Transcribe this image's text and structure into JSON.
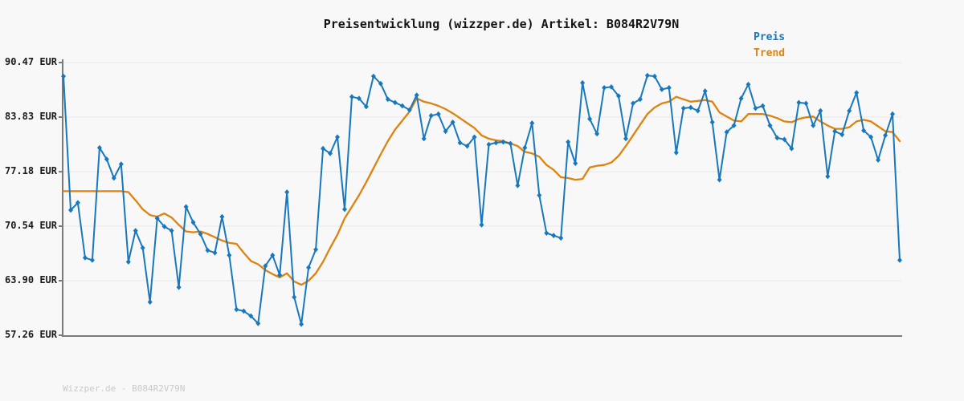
{
  "page": {
    "background": "#f8f8f8",
    "footer": "Wizzper.de - B084R2V79N"
  },
  "chart_data": {
    "type": "line",
    "title": "Preisentwicklung (wizzper.de) Artikel: B084R2V79N",
    "currency": "EUR",
    "xlabel": "",
    "ylabel": "",
    "ylim": [
      57.26,
      90.47
    ],
    "yticks": [
      90.47,
      83.83,
      77.18,
      70.54,
      63.9,
      57.26
    ],
    "ytick_labels": [
      "90.47 EUR",
      "83.83 EUR",
      "77.18 EUR",
      "70.54 EUR",
      "63.90 EUR",
      "57.26 EUR"
    ],
    "grid": "horizontal",
    "legend_position": "top-right",
    "colors": {
      "preis": "#1878be",
      "trend": "#dd830e",
      "axis": "#7a7a7a",
      "gridline": "#e8e8e8"
    },
    "legend": [
      {
        "label": "Preis",
        "color": "#1878be"
      },
      {
        "label": "Trend",
        "color": "#dd830e"
      }
    ],
    "series": [
      {
        "name": "Preis",
        "color": "#1878be",
        "marker": "diamond",
        "values": [
          88.8,
          72.5,
          73.4,
          66.7,
          66.4,
          80.1,
          78.7,
          76.4,
          78.1,
          66.2,
          70.0,
          67.9,
          61.3,
          71.5,
          70.5,
          70.0,
          63.1,
          72.9,
          71.0,
          69.6,
          67.6,
          67.3,
          71.7,
          67.0,
          60.4,
          60.2,
          59.6,
          58.7,
          65.7,
          67.0,
          64.6,
          74.7,
          61.9,
          58.6,
          65.5,
          67.7,
          80.0,
          79.4,
          81.4,
          72.6,
          86.3,
          86.1,
          85.1,
          88.8,
          87.9,
          86.0,
          85.6,
          85.2,
          84.7,
          86.5,
          81.2,
          84.0,
          84.2,
          82.1,
          83.2,
          80.7,
          80.3,
          81.4,
          70.7,
          80.5,
          80.7,
          80.8,
          80.6,
          75.5,
          80.1,
          83.1,
          74.3,
          69.7,
          69.4,
          69.1,
          80.8,
          78.2,
          88.0,
          83.6,
          81.8,
          87.4,
          87.5,
          86.4,
          81.2,
          85.5,
          86.0,
          88.9,
          88.8,
          87.2,
          87.4,
          79.5,
          84.9,
          85.0,
          84.6,
          87.0,
          83.2,
          76.2,
          82.0,
          82.8,
          86.1,
          87.8,
          84.9,
          85.2,
          82.8,
          81.3,
          81.1,
          80.0,
          85.6,
          85.5,
          82.8,
          84.6,
          76.6,
          82.1,
          81.7,
          84.6,
          86.8,
          82.2,
          81.4,
          78.6,
          81.6,
          84.2,
          66.4
        ]
      },
      {
        "name": "Trend",
        "color": "#dd830e",
        "marker": "none",
        "values": [
          74.8,
          74.8,
          74.8,
          74.8,
          74.8,
          74.8,
          74.8,
          74.8,
          74.8,
          74.7,
          73.7,
          72.6,
          71.9,
          71.7,
          72.1,
          71.6,
          70.7,
          69.9,
          69.8,
          69.9,
          69.6,
          69.2,
          68.8,
          68.5,
          68.4,
          67.3,
          66.3,
          65.9,
          65.2,
          64.7,
          64.3,
          64.8,
          63.8,
          63.4,
          63.9,
          64.8,
          66.2,
          67.9,
          69.5,
          71.5,
          72.9,
          74.3,
          75.9,
          77.6,
          79.3,
          80.9,
          82.3,
          83.4,
          84.5,
          86.1,
          85.7,
          85.5,
          85.2,
          84.8,
          84.3,
          83.7,
          83.1,
          82.5,
          81.6,
          81.2,
          81.0,
          80.9,
          80.6,
          80.3,
          79.6,
          79.4,
          79.0,
          78.0,
          77.4,
          76.5,
          76.4,
          76.2,
          76.3,
          77.7,
          77.9,
          78.0,
          78.3,
          79.1,
          80.3,
          81.6,
          82.9,
          84.2,
          85.0,
          85.5,
          85.7,
          86.3,
          86.0,
          85.7,
          85.8,
          85.9,
          85.7,
          84.4,
          83.9,
          83.4,
          83.3,
          84.2,
          84.2,
          84.2,
          84.0,
          83.7,
          83.3,
          83.2,
          83.6,
          83.8,
          83.9,
          83.3,
          82.8,
          82.4,
          82.4,
          82.6,
          83.3,
          83.5,
          83.3,
          82.7,
          82.1,
          82.0,
          80.9
        ]
      }
    ]
  }
}
